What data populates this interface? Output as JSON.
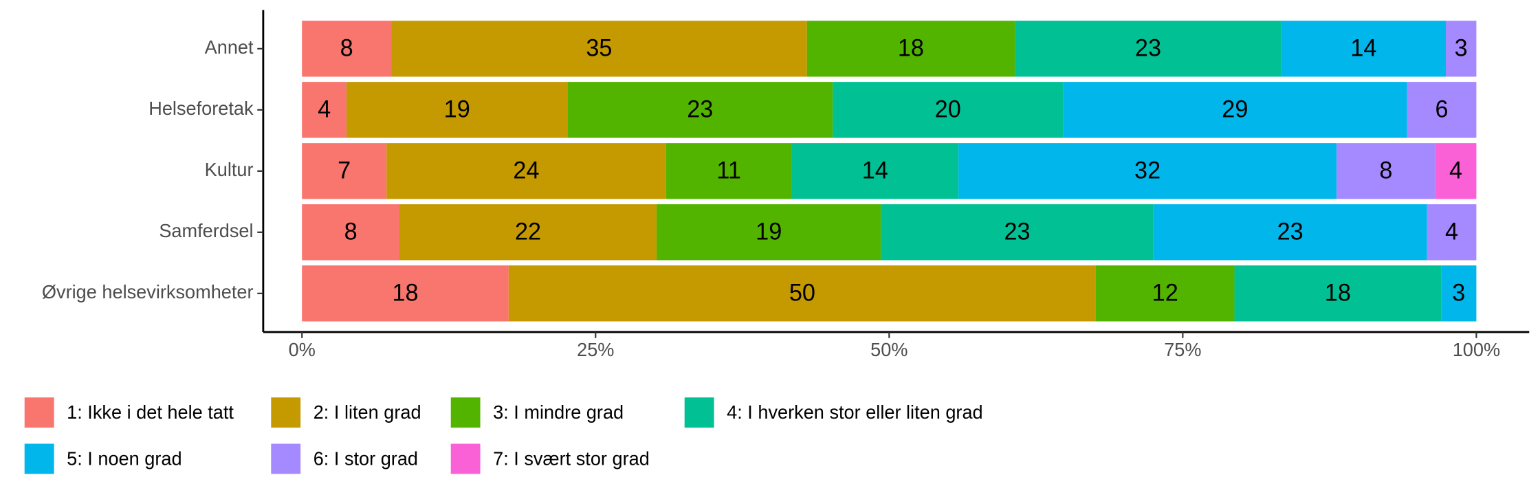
{
  "chart_data": {
    "type": "stacked_barh",
    "categories": [
      "Annet",
      "Helseforetak",
      "Kultur",
      "Samferdsel",
      "Øvrige helsevirksomheter"
    ],
    "series": [
      {
        "name": "1: Ikke i det hele tatt",
        "color": "#F8766D",
        "values": [
          7.6,
          3.8,
          7.2,
          8.3,
          17.6
        ],
        "value_labels": [
          "8",
          "4",
          "7",
          "8",
          "18"
        ]
      },
      {
        "name": "2: I liten grad",
        "color": "#C49A00",
        "values": [
          35.4,
          18.8,
          23.8,
          21.9,
          50.0
        ],
        "value_labels": [
          "35",
          "19",
          "24",
          "22",
          "50"
        ]
      },
      {
        "name": "3: I mindre grad",
        "color": "#53B400",
        "values": [
          17.7,
          22.6,
          10.7,
          19.1,
          11.8
        ],
        "value_labels": [
          "18",
          "23",
          "11",
          "19",
          "12"
        ]
      },
      {
        "name": "4: I hverken stor eller liten grad",
        "color": "#00C094",
        "values": [
          22.7,
          19.6,
          14.2,
          23.2,
          17.6
        ],
        "value_labels": [
          "23",
          "20",
          "14",
          "23",
          "18"
        ]
      },
      {
        "name": "5: I noen grad",
        "color": "#00B6EB",
        "values": [
          14.0,
          29.3,
          32.2,
          23.3,
          3.0
        ],
        "value_labels": [
          "14",
          "29",
          "32",
          "23",
          "3"
        ]
      },
      {
        "name": "6: I stor grad",
        "color": "#A58AFF",
        "values": [
          2.6,
          5.9,
          8.4,
          4.2,
          null
        ],
        "value_labels": [
          "3",
          "6",
          "8",
          "4",
          null
        ]
      },
      {
        "name": "7: I svært stor grad",
        "color": "#FB61D7",
        "values": [
          null,
          null,
          3.5,
          null,
          null
        ],
        "value_labels": [
          null,
          null,
          "4",
          null,
          null
        ]
      }
    ],
    "xlim": [
      -3.3,
      104.5
    ],
    "xticks": [
      {
        "value": 0,
        "label": "0%"
      },
      {
        "value": 25,
        "label": "25%"
      },
      {
        "value": 50,
        "label": "50%"
      },
      {
        "value": 75,
        "label": "75%"
      },
      {
        "value": 100,
        "label": "100%"
      }
    ],
    "legend": "bottom"
  }
}
